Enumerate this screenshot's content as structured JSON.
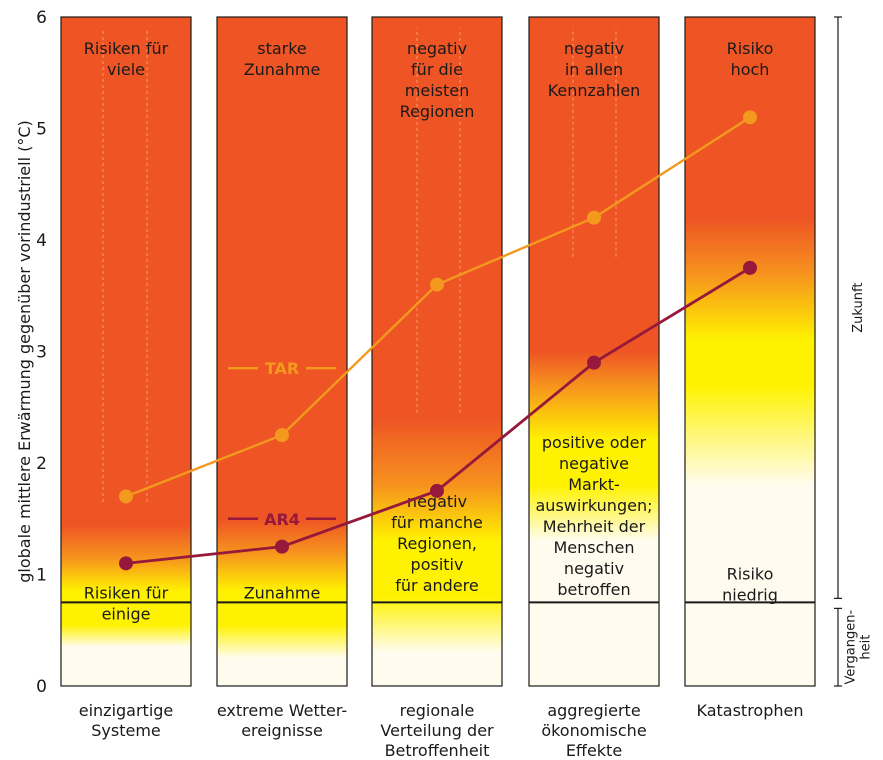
{
  "chart_data": {
    "type": "line",
    "ylabel": "globale mittlere Erwärmung gegenüber vorindustriell (°C)",
    "ylim": [
      0,
      6
    ],
    "y_ticks": [
      "0",
      "1",
      "2",
      "3",
      "4",
      "5",
      "6"
    ],
    "categories": [
      "einzigartige Systeme",
      "extreme Wetterereignisse",
      "regionale Verteilung der Betroffenheit",
      "aggregierte ökonomische Effekte",
      "Katastrophen"
    ],
    "category_labels": [
      [
        "einzigartige",
        "Systeme"
      ],
      [
        "extreme Wetter-",
        "ereignisse"
      ],
      [
        "regionale",
        "Verteilung der",
        "Betroffenheit"
      ],
      [
        "aggregierte",
        "ökonomische",
        "Effekte"
      ],
      [
        "Katastrophen"
      ]
    ],
    "series": [
      {
        "name": "TAR",
        "color": "#f39a1e",
        "values": [
          1.7,
          2.25,
          3.6,
          4.2,
          5.1
        ]
      },
      {
        "name": "AR4",
        "color": "#96183a",
        "values": [
          1.1,
          1.25,
          1.75,
          2.9,
          3.75
        ]
      }
    ],
    "present_level": 0.75,
    "top_labels": [
      [
        "Risiken für",
        "viele"
      ],
      [
        "starke",
        "Zunahme"
      ],
      [
        "negativ",
        "für die",
        "meisten",
        "Regionen"
      ],
      [
        "negativ",
        "in allen",
        "Kennzahlen"
      ],
      [
        "Risiko",
        "hoch"
      ]
    ],
    "bottom_labels": [
      [
        "Risiken für",
        "einige"
      ],
      [
        "Zunahme"
      ],
      [
        "negativ",
        "für manche",
        "Regionen,",
        "positiv",
        "für andere"
      ],
      [
        "positive oder",
        "negative",
        "Markt-",
        "auswirkungen;",
        "Mehrheit der",
        "Menschen",
        "negativ",
        "betroffen"
      ],
      [
        "Risiko",
        "niedrig"
      ]
    ],
    "bottom_label_top": [
      0.93,
      0.93,
      1.75,
      2.28,
      1.1
    ],
    "right_brackets": [
      {
        "label": [
          "Zukunft"
        ],
        "from": 0.75,
        "to": 6
      },
      {
        "label": [
          "Vergangen-",
          "heit"
        ],
        "from": 0,
        "to": 0.75
      }
    ],
    "colors": {
      "red": "#ee5424",
      "orange": "#f6921e",
      "yellow": "#fff200",
      "cream": "#fffcef"
    }
  }
}
